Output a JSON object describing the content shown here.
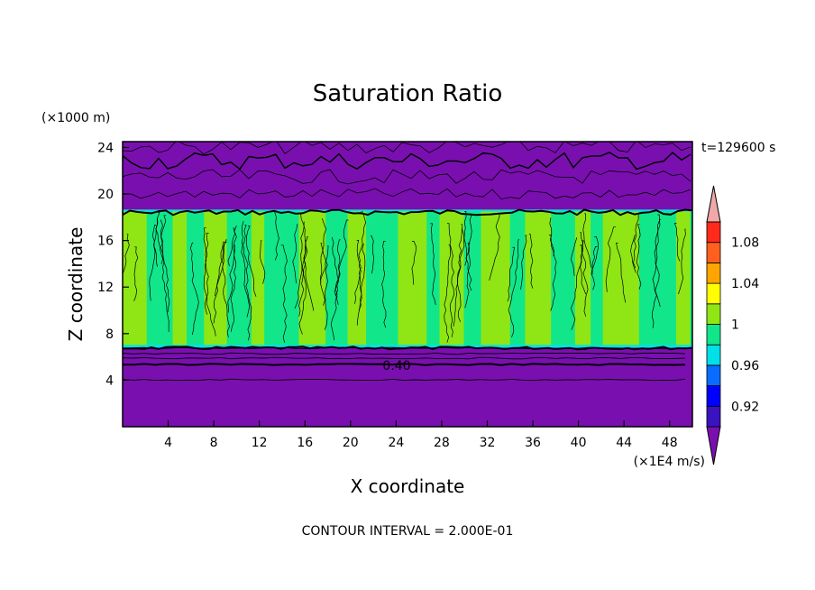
{
  "chart_data": {
    "type": "heatmap",
    "title": "Saturation Ratio",
    "xlabel": "X coordinate",
    "ylabel": "Z coordinate",
    "x_units": "(×1E4 m/s)",
    "y_units": "(×1000 m)",
    "time_label": "t=129600 s",
    "footer": "CONTOUR INTERVAL = 2.000E-01",
    "contour_label": "0.40",
    "xlim": [
      0,
      50
    ],
    "ylim": [
      0,
      24.5
    ],
    "x_ticks": [
      4,
      8,
      12,
      16,
      20,
      24,
      28,
      32,
      36,
      40,
      44,
      48
    ],
    "y_ticks": [
      4,
      8,
      12,
      16,
      20,
      24
    ],
    "colorbar": {
      "levels": [
        0.9,
        0.92,
        0.94,
        0.96,
        0.98,
        1.0,
        1.02,
        1.04,
        1.06,
        1.08,
        1.1
      ],
      "labels": [
        "0.92",
        "0.96",
        "1",
        "1.04",
        "1.08"
      ],
      "colors": [
        "#7a0fb0",
        "#3a12c0",
        "#0000ff",
        "#0a6cff",
        "#00e0e8",
        "#12e68a",
        "#8fe614",
        "#ffff00",
        "#ffa500",
        "#ff6020",
        "#ff2a1a",
        "#f0a8a8"
      ]
    },
    "bands": {
      "background_color": "#7a0fb0",
      "lower_dry_top": 6.8,
      "moist_top": 18.5
    },
    "column_colors": {
      "green": "#8fe614",
      "teal": "#12e68a"
    }
  }
}
